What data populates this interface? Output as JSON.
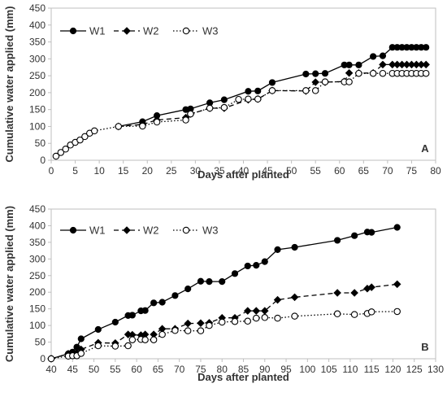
{
  "chart_data": [
    {
      "type": "line",
      "panel_label": "A",
      "xlabel": "Days after planted",
      "ylabel": "Cumulative water applied (mm)",
      "xlim": [
        0,
        80
      ],
      "ylim": [
        0,
        450
      ],
      "xticks": [
        0,
        5,
        10,
        15,
        20,
        25,
        30,
        35,
        40,
        45,
        50,
        55,
        60,
        65,
        70,
        75,
        80
      ],
      "yticks": [
        0,
        50,
        100,
        150,
        200,
        250,
        300,
        350,
        400,
        450
      ],
      "grid": false,
      "legend_position": "top-left",
      "series": [
        {
          "name": "W1",
          "line_style": "solid",
          "marker": "filled-circle",
          "color": "#000000",
          "x": [
            14,
            19,
            22,
            28,
            29,
            33,
            36,
            41,
            43,
            46,
            53,
            55,
            57,
            61,
            62,
            64,
            67,
            69,
            71,
            72,
            73,
            74,
            75,
            76,
            77,
            78
          ],
          "y": [
            100,
            114,
            132,
            150,
            152,
            170,
            179,
            204,
            205,
            230,
            255,
            256,
            257,
            282,
            282,
            282,
            307,
            309,
            334,
            334,
            334,
            334,
            334,
            334,
            334,
            334
          ]
        },
        {
          "name": "W2",
          "line_style": "dashed",
          "marker": "filled-diamond",
          "color": "#000000",
          "x": [
            14,
            19,
            22,
            28,
            29,
            33,
            36,
            41,
            43,
            46,
            53,
            55,
            57,
            61,
            62,
            64,
            67,
            69,
            71,
            72,
            73,
            74,
            75,
            76,
            77,
            78
          ],
          "y": [
            100,
            106,
            119,
            126,
            137,
            154,
            154,
            179,
            181,
            206,
            205,
            231,
            231,
            233,
            258,
            258,
            258,
            283,
            283,
            283,
            283,
            283,
            283,
            283,
            283,
            283
          ]
        },
        {
          "name": "W3",
          "line_style": "dotted",
          "marker": "open-circle",
          "color": "#000000",
          "x": [
            1,
            2,
            3,
            4,
            5,
            6,
            7,
            8,
            9,
            14,
            19,
            22,
            28,
            29,
            33,
            36,
            39,
            41,
            43,
            46,
            53,
            55,
            57,
            61,
            62,
            64,
            67,
            69,
            71,
            72,
            73,
            74,
            75,
            76,
            77,
            78
          ],
          "y": [
            12,
            23,
            33,
            45,
            53,
            60,
            70,
            80,
            87,
            100,
            101,
            113,
            119,
            137,
            154,
            156,
            180,
            181,
            181,
            206,
            206,
            206,
            232,
            232,
            232,
            257,
            257,
            257,
            257,
            257,
            257,
            257,
            257,
            257,
            257,
            257
          ]
        }
      ]
    },
    {
      "type": "line",
      "panel_label": "B",
      "xlabel": "Days after planted",
      "ylabel": "Cumulative water applied (mm)",
      "xlim": [
        40,
        130
      ],
      "ylim": [
        0,
        450
      ],
      "xticks": [
        40,
        45,
        50,
        55,
        60,
        65,
        70,
        75,
        80,
        85,
        90,
        95,
        100,
        105,
        110,
        115,
        120,
        125,
        130
      ],
      "yticks": [
        0,
        50,
        100,
        150,
        200,
        250,
        300,
        350,
        400,
        450
      ],
      "grid": false,
      "legend_position": "top-left",
      "series": [
        {
          "name": "W1",
          "line_style": "solid",
          "marker": "filled-circle",
          "color": "#000000",
          "x": [
            40,
            44,
            45,
            46,
            47,
            51,
            55,
            58,
            59,
            61,
            62,
            64,
            66,
            69,
            72,
            75,
            77,
            80,
            83,
            86,
            88,
            90,
            93,
            97,
            107,
            111,
            114,
            115,
            121
          ],
          "y": [
            0,
            15,
            20,
            35,
            60,
            88,
            110,
            130,
            131,
            144,
            145,
            168,
            170,
            190,
            210,
            233,
            232,
            232,
            256,
            279,
            281,
            292,
            328,
            335,
            356,
            370,
            381,
            380,
            395
          ]
        },
        {
          "name": "W2",
          "line_style": "dashed",
          "marker": "filled-diamond",
          "color": "#000000",
          "x": [
            40,
            44,
            45,
            46,
            47,
            51,
            55,
            58,
            59,
            61,
            62,
            64,
            66,
            69,
            72,
            75,
            77,
            80,
            83,
            86,
            88,
            90,
            93,
            97,
            107,
            111,
            114,
            115,
            121
          ],
          "y": [
            0,
            15,
            16,
            17,
            28,
            48,
            47,
            73,
            72,
            71,
            73,
            73,
            90,
            90,
            106,
            107,
            108,
            123,
            123,
            144,
            144,
            144,
            177,
            185,
            198,
            198,
            211,
            215,
            224
          ]
        },
        {
          "name": "W3",
          "line_style": "dotted",
          "marker": "open-circle",
          "color": "#000000",
          "x": [
            40,
            44,
            45,
            46,
            47,
            51,
            55,
            58,
            59,
            61,
            62,
            64,
            66,
            69,
            72,
            75,
            77,
            80,
            83,
            86,
            88,
            90,
            93,
            97,
            107,
            111,
            114,
            115,
            121
          ],
          "y": [
            0,
            8,
            9,
            9,
            16,
            39,
            38,
            39,
            57,
            58,
            57,
            57,
            73,
            85,
            84,
            84,
            100,
            110,
            112,
            113,
            122,
            124,
            122,
            128,
            135,
            133,
            136,
            141,
            142
          ]
        }
      ]
    }
  ]
}
